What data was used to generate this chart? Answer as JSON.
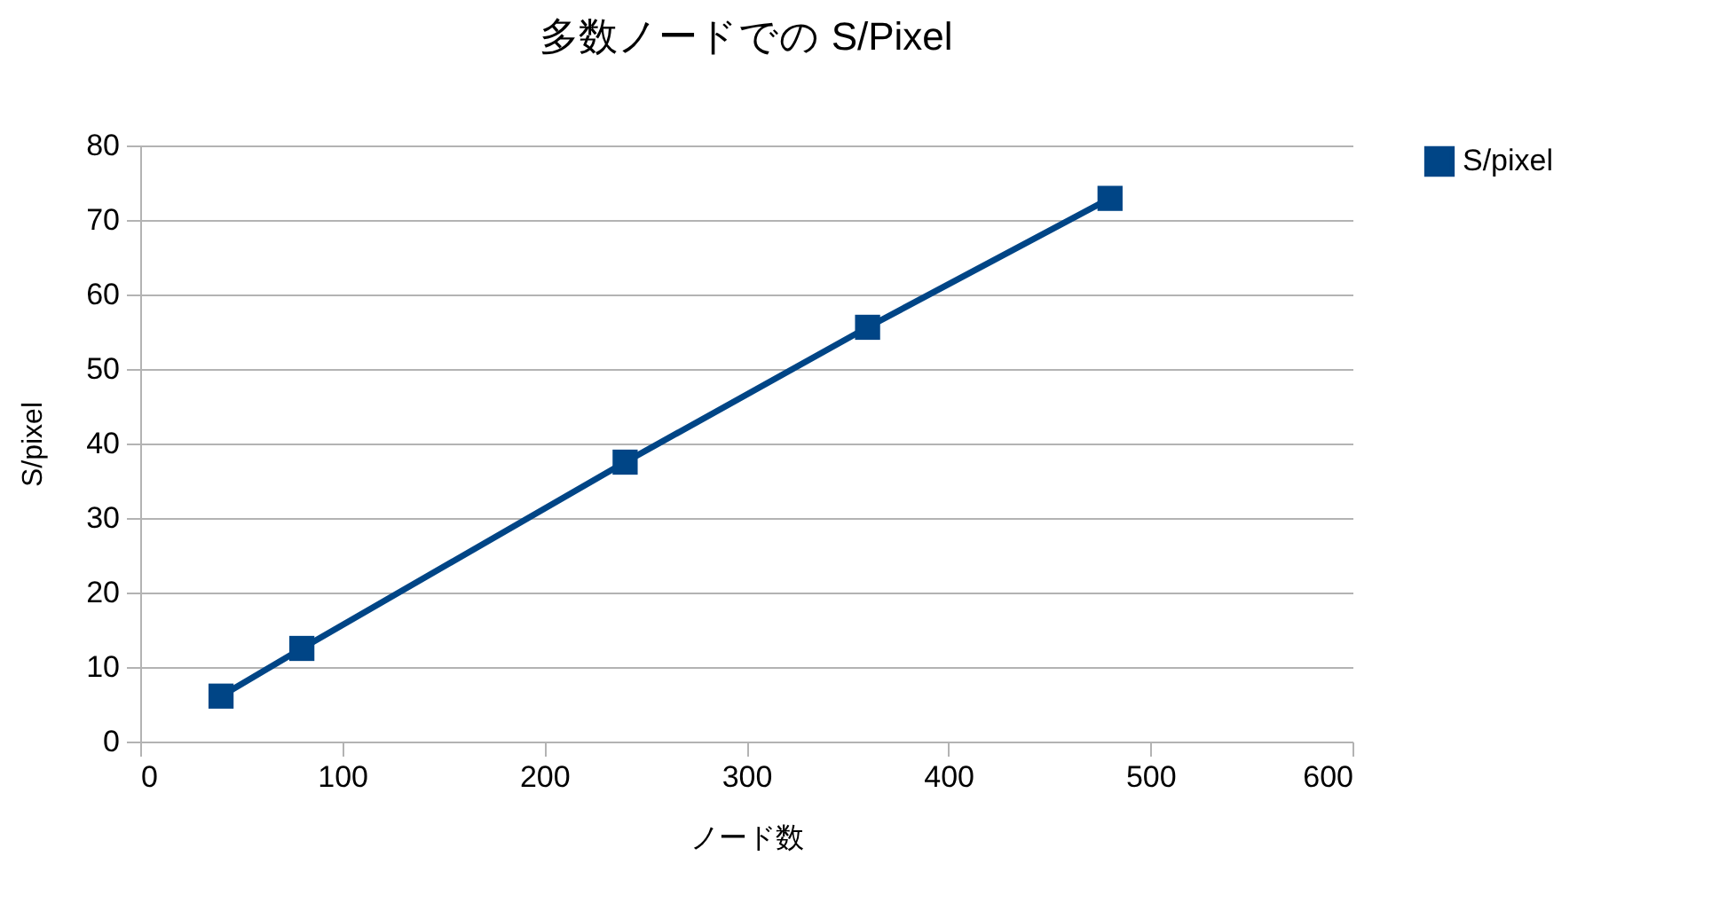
{
  "chart_data": {
    "type": "line",
    "title": "多数ノードでの  S/Pixel",
    "xlabel": "ノード数",
    "ylabel": "S/pixel",
    "x": [
      40,
      80,
      240,
      360,
      480
    ],
    "series": [
      {
        "name": "S/pixel",
        "color": "#004586",
        "values": [
          6.1,
          12.5,
          37.5,
          55.6,
          72.9
        ]
      }
    ],
    "xlim": [
      0,
      600
    ],
    "xticks": [
      0,
      100,
      200,
      300,
      400,
      500,
      600
    ],
    "ylim": [
      0,
      80
    ],
    "yticks": [
      0,
      10,
      20,
      30,
      40,
      50,
      60,
      70,
      80
    ],
    "grid": "y",
    "legend": "right",
    "marker": "square",
    "line_style": "solid"
  }
}
